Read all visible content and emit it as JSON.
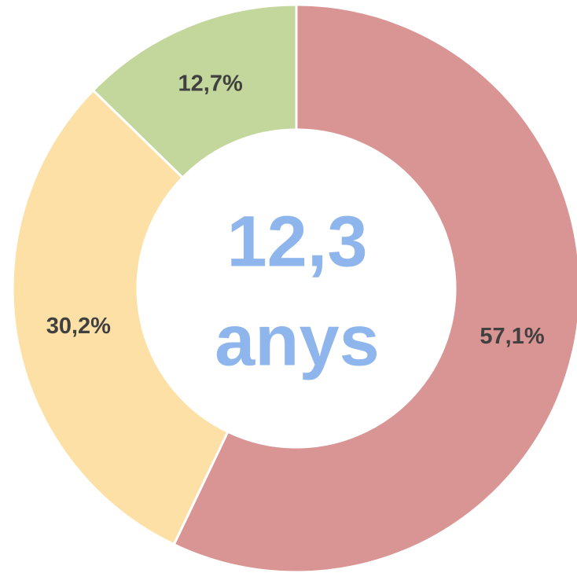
{
  "chart_data": {
    "type": "donut",
    "values": [
      57.1,
      30.2,
      12.7
    ],
    "value_labels": [
      "57,1%",
      "30,2%",
      "12,7%"
    ],
    "colors": [
      "#d99594",
      "#fde0a6",
      "#c3d69b"
    ],
    "annotations": [
      "12,3",
      "anys"
    ]
  }
}
